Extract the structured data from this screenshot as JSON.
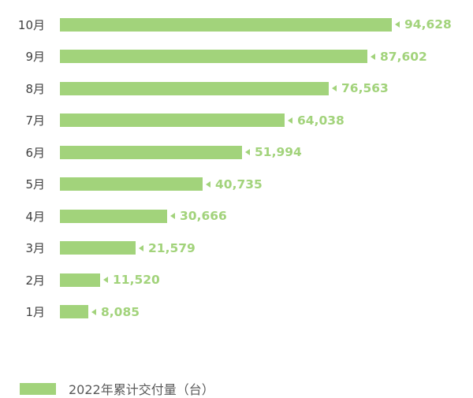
{
  "chart_data": {
    "type": "bar",
    "orientation": "horizontal",
    "title": "",
    "xlabel": "",
    "ylabel": "",
    "categories": [
      "10月",
      "9月",
      "8月",
      "7月",
      "6月",
      "5月",
      "4月",
      "3月",
      "2月",
      "1月"
    ],
    "values": [
      94628,
      87602,
      76563,
      64038,
      51994,
      40735,
      30666,
      21579,
      11520,
      8085
    ],
    "value_labels": [
      "94,628",
      "87,602",
      "76,563",
      "64,038",
      "51,994",
      "40,735",
      "30,666",
      "21,579",
      "11,520",
      "8,085"
    ],
    "series": [
      {
        "name": "2022年累计交付量（台）",
        "values": [
          94628,
          87602,
          76563,
          64038,
          51994,
          40735,
          30666,
          21579,
          11520,
          8085
        ]
      }
    ],
    "xlim": [
      0,
      94628
    ],
    "grid": false,
    "legend_position": "bottom-left",
    "bar_color": "#a2d37b",
    "category_label_color": "#3f3f3f",
    "value_label_color": "#a2d37b",
    "legend_text_color": "#595959",
    "background_color": "#ffffff"
  },
  "legend": {
    "label": "2022年累计交付量（台）"
  },
  "icons": {
    "value_pointer": "left-triangle-icon",
    "legend_swatch": "legend-color-swatch"
  }
}
